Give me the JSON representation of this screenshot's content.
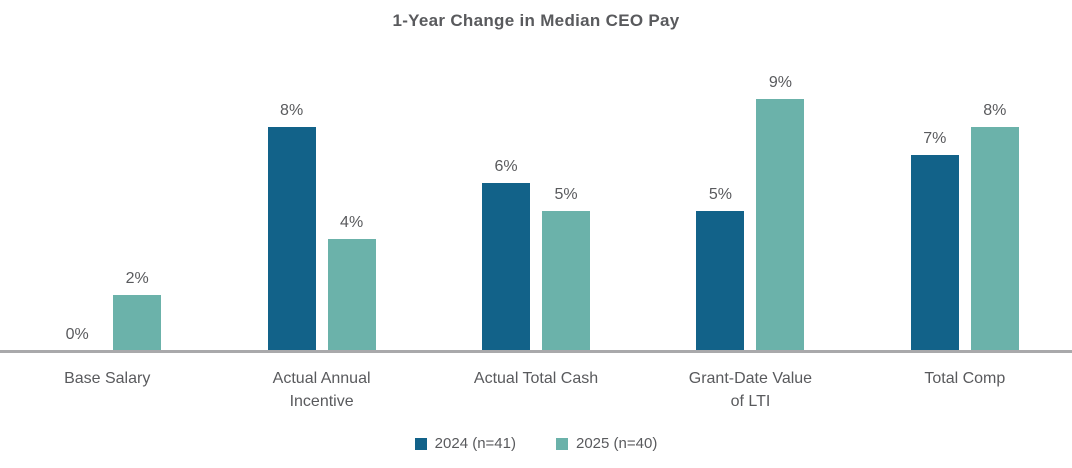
{
  "chart_data": {
    "type": "bar",
    "title": "1-Year Change in Median CEO Pay",
    "categories": [
      "Base Salary",
      "Actual Annual Incentive",
      "Actual Total Cash",
      "Grant-Date Value of LTI",
      "Total Comp"
    ],
    "category_lines": [
      [
        "Base Salary"
      ],
      [
        "Actual Annual",
        "Incentive"
      ],
      [
        "Actual Total Cash"
      ],
      [
        "Grant-Date Value",
        "of LTI"
      ],
      [
        "Total Comp"
      ]
    ],
    "series": [
      {
        "name": "2024 (n=41)",
        "year": "2024",
        "color": "#126289",
        "values": [
          0,
          8,
          6,
          5,
          7
        ],
        "labels": [
          "0%",
          "8%",
          "6%",
          "5%",
          "7%"
        ]
      },
      {
        "name": "2025 (n=40)",
        "year": "2025",
        "color": "#6bb2aa",
        "values": [
          2,
          4,
          5,
          9,
          8
        ],
        "labels": [
          "2%",
          "4%",
          "5%",
          "9%",
          "8%"
        ]
      }
    ],
    "unit": "percent",
    "xlabel": "",
    "ylabel": "",
    "ylim": [
      0,
      10
    ],
    "grid": false,
    "y_axis_visible": false,
    "value_labels": true,
    "legend_position": "bottom",
    "colors": {
      "axis_line": "#a9a9ab",
      "text": "#595a5d",
      "background": "#ffffff"
    }
  }
}
